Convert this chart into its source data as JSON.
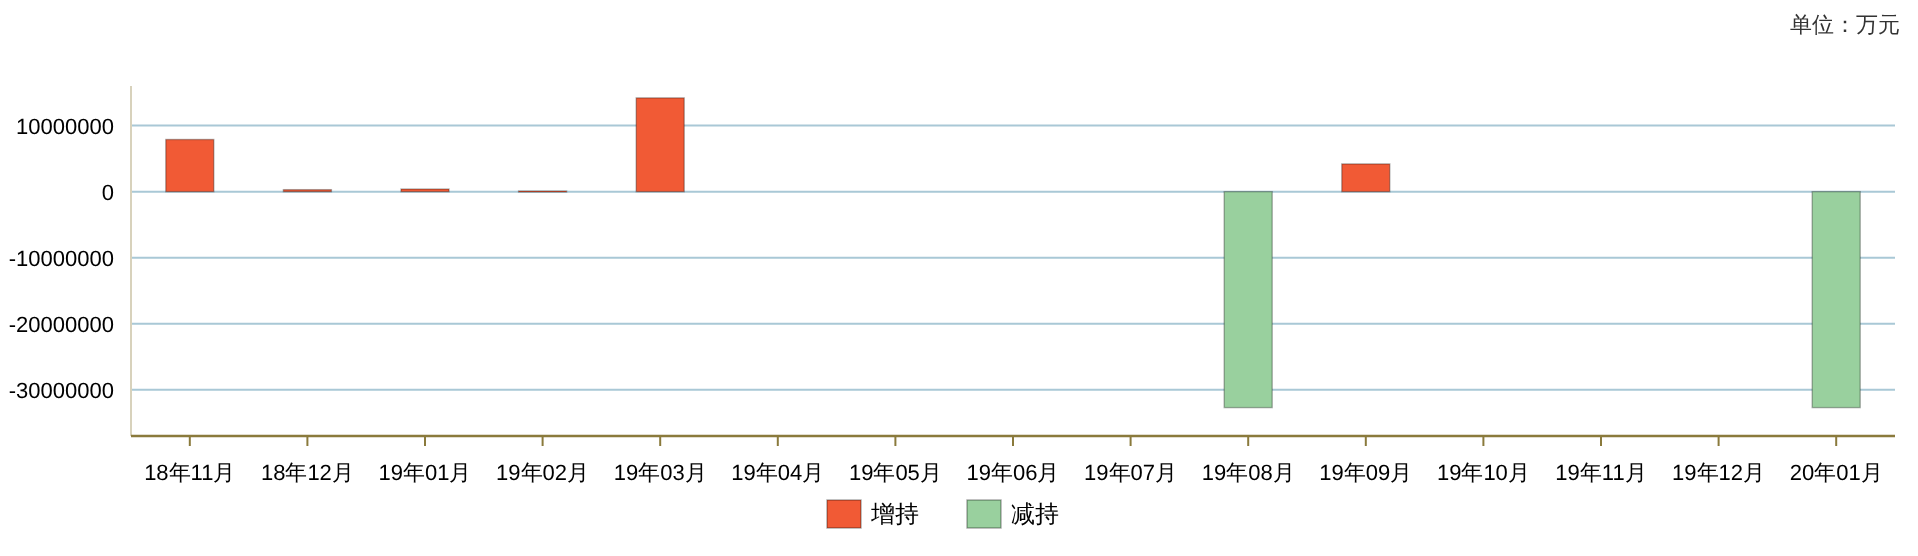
{
  "chart_data": {
    "type": "bar",
    "stacked": true,
    "categories": [
      "18年11月",
      "18年12月",
      "19年01月",
      "19年02月",
      "19年03月",
      "19年04月",
      "19年05月",
      "19年06月",
      "19年07月",
      "19年08月",
      "19年09月",
      "19年10月",
      "19年11月",
      "19年12月",
      "20年01月"
    ],
    "series": [
      {
        "name": "增持",
        "color": "#f15a35",
        "values": [
          7900000,
          300000,
          400000,
          100000,
          14200000,
          null,
          null,
          null,
          null,
          null,
          4200000,
          null,
          null,
          null,
          null
        ]
      },
      {
        "name": "减持",
        "color": "#99d09e",
        "values": [
          null,
          null,
          null,
          null,
          null,
          null,
          null,
          null,
          null,
          -32700000,
          null,
          null,
          null,
          null,
          -32700000
        ]
      }
    ],
    "ylim": [
      -37000000,
      16000000
    ],
    "yticks": [
      -30000000,
      -20000000,
      -10000000,
      0,
      10000000
    ],
    "grid": "y",
    "legend": "bottom",
    "annotations": [
      "单位：万元"
    ]
  }
}
